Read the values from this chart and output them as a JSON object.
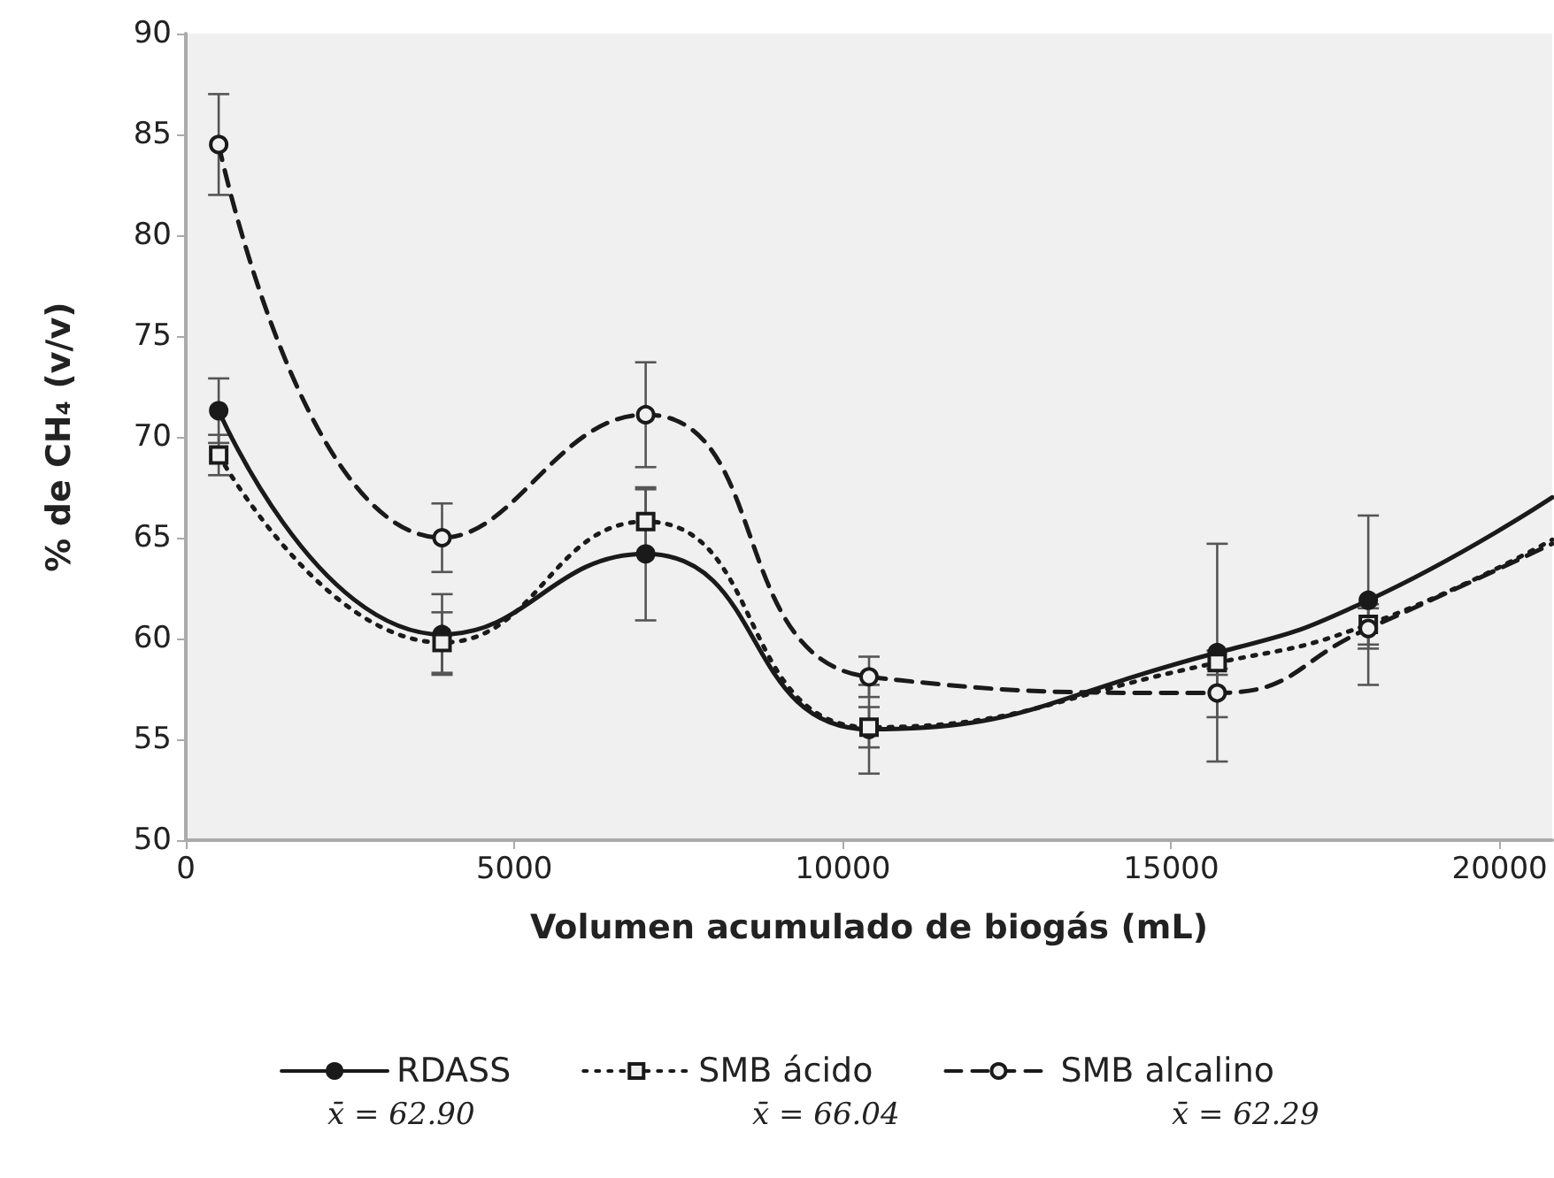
{
  "chart_data": {
    "type": "line",
    "xlabel": "Volumen acumulado de biogás (mL)",
    "ylabel": "% de CH₄ (v/v)",
    "xlim": [
      0,
      20800
    ],
    "xticks": [
      0,
      5000,
      10000,
      15000,
      20000
    ],
    "ylim": [
      50,
      90
    ],
    "yticks": [
      50,
      55,
      60,
      65,
      70,
      75,
      80,
      85,
      90
    ],
    "grid": false,
    "legend": "bottom",
    "series": [
      {
        "name": "RDASS",
        "color": "#1a1a1a",
        "marker": "circle",
        "line_style": "solid",
        "x": [
          500,
          3900,
          7000,
          10400,
          15700,
          18000,
          20800
        ],
        "values": [
          71.3,
          60.2,
          64.2,
          55.5,
          59.3,
          61.9,
          67.0
        ],
        "errors": [
          1.6,
          2.0,
          3.3,
          2.2,
          5.4,
          4.2,
          null
        ]
      },
      {
        "name": "SMB ácido",
        "color": "#1a1a1a",
        "marker": "square",
        "line_style": "dotted",
        "x": [
          500,
          3900,
          7000,
          10400,
          15700,
          18000,
          20800
        ],
        "values": [
          69.1,
          59.8,
          65.8,
          55.6,
          58.8,
          60.7,
          64.9
        ],
        "errors": [
          1.0,
          1.5,
          1.6,
          1.0,
          0.6,
          1.0,
          null
        ]
      },
      {
        "name": "SMB alcalino",
        "color": "#1a1a1a",
        "marker": "circle",
        "line_style": "dashed",
        "x": [
          500,
          3900,
          7000,
          10400,
          15700,
          18000,
          20800
        ],
        "values": [
          84.5,
          65.0,
          71.1,
          58.1,
          57.3,
          60.5,
          64.7
        ],
        "errors": [
          2.5,
          1.7,
          2.6,
          1.0,
          1.2,
          1.0,
          null
        ]
      }
    ],
    "annotations": [
      "x̄ = 62.90",
      "x̄ = 66.04",
      "x̄ = 62.29"
    ]
  }
}
